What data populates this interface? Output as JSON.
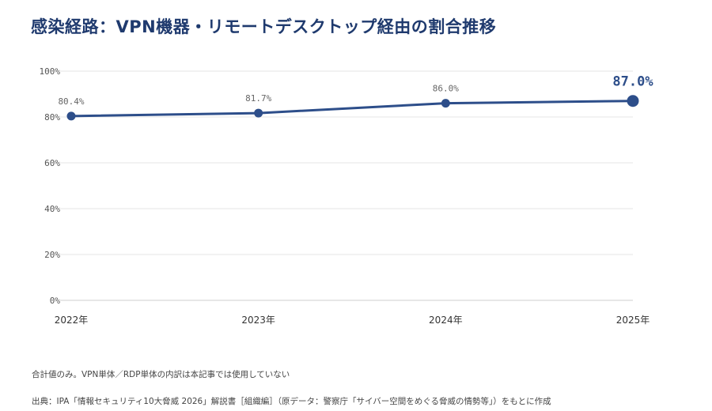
{
  "chart_data": {
    "type": "line",
    "title": "感染経路：VPN機器・リモートデスクトップ経由の割合推移",
    "categories": [
      "2022年",
      "2023年",
      "2024年",
      "2025年"
    ],
    "series": [
      {
        "values": [
          80.4,
          81.7,
          86.0,
          87.0
        ]
      }
    ],
    "data_labels": [
      "80.4%",
      "81.7%",
      "86.0%",
      "87.0%"
    ],
    "ylim": [
      0,
      100
    ],
    "yticks": [
      0,
      20,
      40,
      60,
      80,
      100
    ],
    "ytick_labels": [
      "0%",
      "20%",
      "40%",
      "60%",
      "80%",
      "100%"
    ],
    "grid": true,
    "colors": {
      "line": "#2d4e8a",
      "title": "#1f3a6e",
      "grid": "#e6e6e6"
    }
  },
  "notes": {
    "line1": "合計値のみ。VPN単体／RDP単体の内訳は本記事では使用していない",
    "line2": "出典：IPA「情報セキュリティ10大脅威 2026」解説書［組織編］（原データ：警察庁「サイバー空間をめぐる脅威の情勢等」）をもとに作成"
  }
}
